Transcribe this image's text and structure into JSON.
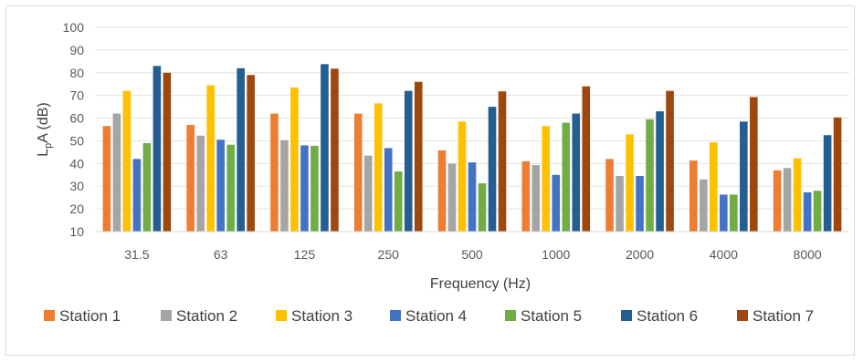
{
  "chart_data": {
    "type": "bar",
    "title": "",
    "xlabel": "Frequency  (Hz)",
    "ylabel_main": "L",
    "ylabel_sub": "p",
    "ylabel_rest": "A (dB)",
    "ylim": [
      10,
      100
    ],
    "yticks": [
      "10",
      "20",
      "30",
      "40",
      "50",
      "60",
      "70",
      "80",
      "90",
      "100"
    ],
    "grid": true,
    "legend_position": "bottom",
    "categories": [
      "31.5",
      "63",
      "125",
      "250",
      "500",
      "1000",
      "2000",
      "4000",
      "8000"
    ],
    "series": [
      {
        "name": "Station 1",
        "color": "#ED7D31",
        "values": [
          56.5,
          57,
          62,
          62,
          45.8,
          41,
          42,
          41.3,
          37
        ]
      },
      {
        "name": "Station 2",
        "color": "#A5A5A5",
        "values": [
          62,
          52.3,
          50.3,
          43.5,
          40,
          39.3,
          34.5,
          33,
          38
        ]
      },
      {
        "name": "Station 3",
        "color": "#FFC000",
        "values": [
          72,
          74.5,
          73.5,
          66.5,
          58.5,
          56.5,
          52.8,
          49.3,
          42.3
        ]
      },
      {
        "name": "Station 4",
        "color": "#4472C4",
        "values": [
          42,
          50.5,
          48,
          46.8,
          40.5,
          35,
          34.5,
          26.3,
          27.3
        ]
      },
      {
        "name": "Station 5",
        "color": "#70AD47",
        "values": [
          49,
          48.3,
          47.8,
          36.5,
          31.3,
          58,
          59.5,
          26.3,
          28
        ]
      },
      {
        "name": "Station 6",
        "color": "#255E91",
        "values": [
          83,
          82,
          83.8,
          72,
          65,
          62,
          63,
          58.5,
          52.5
        ]
      },
      {
        "name": "Station 7",
        "color": "#9E480E",
        "values": [
          80,
          79,
          81.8,
          76,
          71.8,
          74,
          72,
          69.3,
          60.3
        ]
      }
    ]
  }
}
